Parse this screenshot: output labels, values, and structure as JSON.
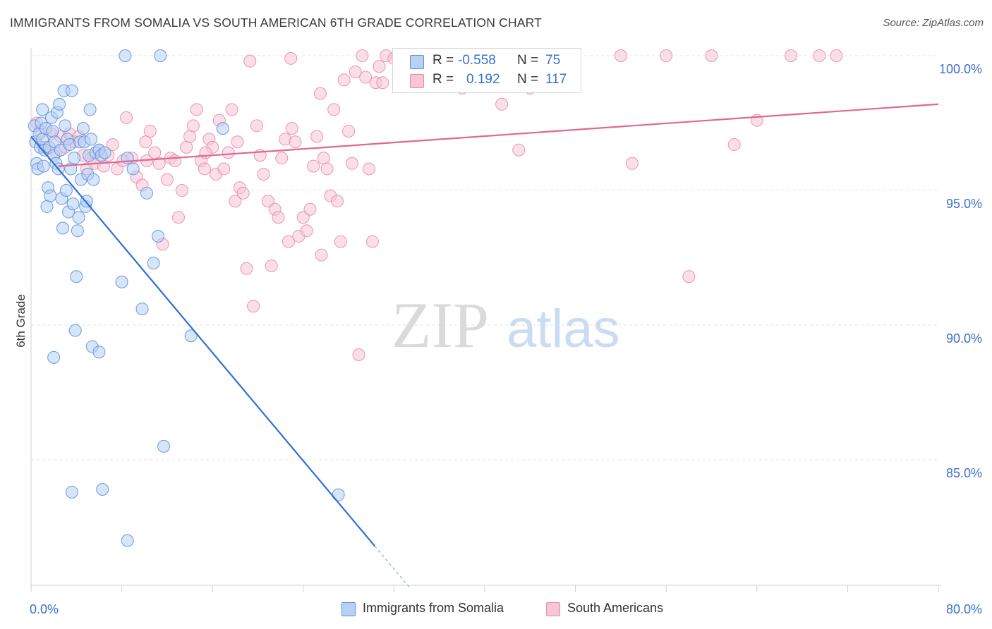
{
  "header": {
    "title": "IMMIGRANTS FROM SOMALIA VS SOUTH AMERICAN 6TH GRADE CORRELATION CHART",
    "source": "Source: ZipAtlas.com"
  },
  "watermark": {
    "zip": "ZIP",
    "atlas": "atlas"
  },
  "legend_top": {
    "r_label": "R =",
    "n_label": "N =",
    "series": [
      {
        "r": "-0.558",
        "n": "75"
      },
      {
        "r": "0.192",
        "n": "117"
      }
    ]
  },
  "legend_bottom": {
    "items": [
      "Immigrants from Somalia",
      "South Americans"
    ]
  },
  "colors": {
    "blue_fill": "#b7d0f4",
    "blue_stroke": "#5b8fe0",
    "blue_line": "#2f6fd6",
    "pink_fill": "#f7c5d5",
    "pink_stroke": "#e98aaa",
    "pink_line": "#e0688f",
    "tick_text": "#3a70d0",
    "grid": "#e3e3e3"
  },
  "chart_data": {
    "type": "scatter",
    "ylabel": "6th Grade",
    "xlim": [
      0,
      80
    ],
    "ylim": [
      80.0,
      100.8
    ],
    "x_ticks": [
      {
        "value": 0,
        "label": "0.0%"
      },
      {
        "value": 8,
        "label": ""
      },
      {
        "value": 16,
        "label": ""
      },
      {
        "value": 24,
        "label": ""
      },
      {
        "value": 32,
        "label": ""
      },
      {
        "value": 40,
        "label": ""
      },
      {
        "value": 48,
        "label": ""
      },
      {
        "value": 56,
        "label": ""
      },
      {
        "value": 64,
        "label": ""
      },
      {
        "value": 72,
        "label": ""
      },
      {
        "value": 80,
        "label": "80.0%"
      }
    ],
    "y_ticks": [
      {
        "value": 85,
        "label": "85.0%"
      },
      {
        "value": 90,
        "label": "90.0%"
      },
      {
        "value": 95,
        "label": "95.0%"
      },
      {
        "value": 100,
        "label": "100.0%"
      }
    ],
    "series": [
      {
        "name": "Immigrants from Somalia",
        "r": -0.558,
        "n": 75,
        "trend": {
          "x1": 0.0,
          "y1": 97.0,
          "x2": 30.3,
          "y2": 81.8,
          "dash_to_x": 33.5
        },
        "points": [
          [
            0.3,
            97.4
          ],
          [
            0.4,
            96.8
          ],
          [
            0.5,
            96.0
          ],
          [
            0.6,
            95.8
          ],
          [
            0.7,
            97.1
          ],
          [
            0.8,
            96.6
          ],
          [
            0.9,
            97.5
          ],
          [
            1.0,
            98.0
          ],
          [
            1.0,
            96.9
          ],
          [
            1.1,
            95.9
          ],
          [
            1.2,
            96.5
          ],
          [
            1.3,
            97.3
          ],
          [
            1.4,
            94.4
          ],
          [
            1.5,
            95.1
          ],
          [
            1.6,
            96.6
          ],
          [
            1.7,
            94.8
          ],
          [
            1.8,
            97.7
          ],
          [
            1.9,
            97.2
          ],
          [
            2.0,
            96.3
          ],
          [
            2.0,
            88.8
          ],
          [
            2.1,
            96.8
          ],
          [
            2.2,
            96.0
          ],
          [
            2.3,
            97.9
          ],
          [
            2.4,
            95.8
          ],
          [
            2.5,
            98.2
          ],
          [
            2.6,
            96.5
          ],
          [
            2.7,
            94.7
          ],
          [
            2.8,
            93.6
          ],
          [
            2.9,
            98.7
          ],
          [
            3.0,
            97.4
          ],
          [
            3.1,
            95.0
          ],
          [
            3.2,
            96.9
          ],
          [
            3.3,
            94.2
          ],
          [
            3.4,
            96.7
          ],
          [
            3.5,
            95.8
          ],
          [
            3.6,
            98.7
          ],
          [
            3.7,
            94.5
          ],
          [
            3.8,
            96.2
          ],
          [
            3.9,
            89.8
          ],
          [
            4.0,
            91.8
          ],
          [
            4.1,
            93.5
          ],
          [
            4.2,
            94.0
          ],
          [
            4.3,
            96.8
          ],
          [
            4.4,
            95.4
          ],
          [
            4.6,
            97.3
          ],
          [
            4.7,
            96.8
          ],
          [
            4.8,
            94.4
          ],
          [
            4.9,
            94.6
          ],
          [
            5.0,
            95.6
          ],
          [
            5.1,
            96.3
          ],
          [
            5.2,
            98.0
          ],
          [
            5.3,
            96.9
          ],
          [
            5.4,
            89.2
          ],
          [
            5.5,
            95.4
          ],
          [
            5.7,
            96.4
          ],
          [
            6.0,
            96.5
          ],
          [
            6.2,
            96.3
          ],
          [
            6.5,
            96.4
          ],
          [
            6.0,
            89.0
          ],
          [
            6.3,
            83.9
          ],
          [
            3.6,
            83.8
          ],
          [
            8.0,
            91.6
          ],
          [
            8.3,
            100.0
          ],
          [
            8.5,
            82.0
          ],
          [
            8.5,
            96.2
          ],
          [
            9.0,
            95.8
          ],
          [
            9.8,
            90.6
          ],
          [
            10.2,
            94.9
          ],
          [
            10.8,
            92.3
          ],
          [
            11.2,
            93.3
          ],
          [
            11.4,
            100.0
          ],
          [
            11.7,
            85.5
          ],
          [
            14.1,
            89.6
          ],
          [
            27.1,
            83.7
          ],
          [
            16.9,
            97.3
          ]
        ]
      },
      {
        "name": "South Americans",
        "r": 0.192,
        "n": 117,
        "trend": {
          "x1": 2.4,
          "y1": 95.9,
          "x2": 80.0,
          "y2": 98.2
        },
        "points": [
          [
            0.5,
            97.5
          ],
          [
            0.8,
            97.2
          ],
          [
            1.2,
            96.6
          ],
          [
            1.8,
            97.1
          ],
          [
            2.2,
            96.4
          ],
          [
            2.6,
            97.0
          ],
          [
            3.0,
            96.6
          ],
          [
            3.4,
            97.1
          ],
          [
            3.8,
            96.8
          ],
          [
            4.2,
            97.0
          ],
          [
            4.6,
            96.3
          ],
          [
            4.9,
            95.8
          ],
          [
            5.3,
            96.2
          ],
          [
            5.6,
            96.0
          ],
          [
            6.0,
            96.5
          ],
          [
            6.4,
            95.9
          ],
          [
            6.8,
            96.3
          ],
          [
            7.2,
            96.7
          ],
          [
            7.6,
            95.8
          ],
          [
            8.1,
            96.1
          ],
          [
            8.4,
            97.7
          ],
          [
            8.9,
            96.2
          ],
          [
            9.3,
            95.5
          ],
          [
            9.8,
            95.2
          ],
          [
            10.2,
            96.1
          ],
          [
            10.5,
            97.2
          ],
          [
            10.9,
            96.4
          ],
          [
            11.3,
            96.0
          ],
          [
            11.6,
            93.0
          ],
          [
            12.0,
            95.4
          ],
          [
            12.3,
            96.2
          ],
          [
            12.7,
            96.1
          ],
          [
            13.0,
            94.0
          ],
          [
            13.3,
            95.0
          ],
          [
            13.7,
            96.6
          ],
          [
            14.0,
            97.0
          ],
          [
            14.3,
            97.4
          ],
          [
            14.6,
            98.0
          ],
          [
            15.0,
            96.1
          ],
          [
            15.3,
            95.8
          ],
          [
            15.7,
            96.9
          ],
          [
            16.0,
            96.6
          ],
          [
            16.3,
            95.6
          ],
          [
            16.6,
            97.6
          ],
          [
            17.0,
            95.8
          ],
          [
            17.4,
            96.4
          ],
          [
            17.7,
            98.0
          ],
          [
            18.0,
            94.6
          ],
          [
            18.4,
            95.1
          ],
          [
            18.7,
            94.9
          ],
          [
            19.0,
            92.1
          ],
          [
            19.3,
            99.8
          ],
          [
            19.6,
            90.7
          ],
          [
            19.9,
            97.4
          ],
          [
            20.2,
            96.3
          ],
          [
            20.5,
            95.6
          ],
          [
            20.9,
            94.6
          ],
          [
            21.2,
            92.2
          ],
          [
            21.5,
            94.3
          ],
          [
            21.8,
            94.0
          ],
          [
            22.1,
            96.2
          ],
          [
            22.4,
            96.9
          ],
          [
            22.7,
            93.1
          ],
          [
            23.0,
            97.3
          ],
          [
            23.3,
            96.8
          ],
          [
            23.6,
            93.3
          ],
          [
            24.0,
            94.0
          ],
          [
            24.3,
            93.5
          ],
          [
            24.6,
            94.3
          ],
          [
            24.9,
            95.9
          ],
          [
            25.2,
            97.0
          ],
          [
            25.5,
            98.6
          ],
          [
            25.8,
            96.2
          ],
          [
            26.1,
            95.8
          ],
          [
            26.4,
            94.8
          ],
          [
            26.7,
            98.0
          ],
          [
            27.0,
            94.6
          ],
          [
            27.3,
            93.1
          ],
          [
            27.6,
            99.1
          ],
          [
            28.0,
            97.2
          ],
          [
            28.3,
            96.0
          ],
          [
            28.6,
            99.4
          ],
          [
            28.9,
            88.9
          ],
          [
            29.2,
            100.0
          ],
          [
            29.5,
            99.2
          ],
          [
            29.8,
            95.8
          ],
          [
            30.1,
            93.1
          ],
          [
            30.4,
            99.0
          ],
          [
            30.7,
            99.6
          ],
          [
            31.0,
            99.0
          ],
          [
            31.3,
            100.0
          ],
          [
            32.0,
            99.9
          ],
          [
            33.0,
            99.2
          ],
          [
            34.0,
            99.7
          ],
          [
            35.0,
            99.1
          ],
          [
            36.0,
            99.3
          ],
          [
            37.0,
            99.6
          ],
          [
            38.0,
            98.8
          ],
          [
            41.0,
            100.0
          ],
          [
            44.0,
            98.8
          ],
          [
            47.0,
            100.0
          ],
          [
            52.0,
            100.0
          ],
          [
            56.0,
            100.0
          ],
          [
            60.0,
            100.0
          ],
          [
            67.0,
            100.0
          ],
          [
            69.5,
            100.0
          ],
          [
            62.0,
            96.7
          ],
          [
            58.0,
            91.8
          ],
          [
            53.0,
            96.0
          ],
          [
            43.0,
            96.5
          ],
          [
            41.5,
            98.2
          ],
          [
            39.0,
            99.4
          ],
          [
            71.0,
            100.0
          ],
          [
            64.0,
            97.6
          ],
          [
            25.6,
            92.6
          ],
          [
            22.9,
            99.9
          ],
          [
            15.4,
            96.4
          ],
          [
            18.2,
            96.8
          ],
          [
            10.1,
            96.8
          ]
        ]
      }
    ]
  }
}
